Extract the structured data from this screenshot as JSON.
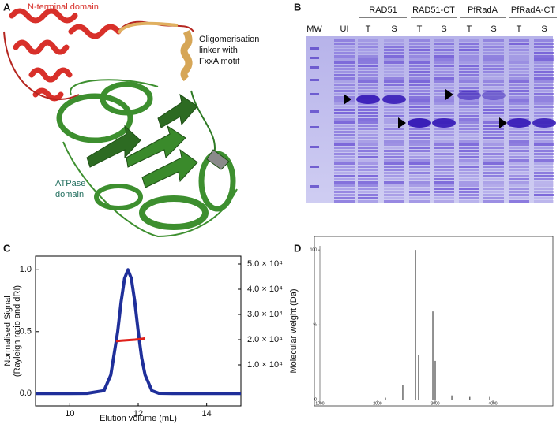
{
  "panels": {
    "a": {
      "letter": "A",
      "n_terminal_label": "N-terminal domain",
      "linker_label": [
        "Oligomerisation",
        "linker with",
        "FxxA motif"
      ],
      "atpase_label": [
        "ATPase",
        "domain"
      ]
    },
    "b": {
      "letter": "B",
      "groups": [
        "RAD51",
        "RAD51-CT",
        "PfRadA",
        "PfRadA-CT"
      ],
      "lanes": [
        "MW",
        "UI",
        "T",
        "S",
        "T",
        "S",
        "T",
        "S",
        "T",
        "S"
      ]
    },
    "c": {
      "letter": "C"
    },
    "d": {
      "letter": "D"
    }
  },
  "chart_data": [
    {
      "type": "line",
      "xlabel": "Elution volume (mL)",
      "ylabel": [
        "Normalised Signal",
        "(Rayleigh ratio and dRI)"
      ],
      "y2label": "Molecular weight (Da)",
      "xlim": [
        9,
        15
      ],
      "xticks": [
        10,
        12,
        14
      ],
      "ylim": [
        -0.1,
        1.11
      ],
      "yticks": [
        {
          "value": 0,
          "label": "0.0"
        },
        {
          "value": 0.5,
          "label": "0.5"
        },
        {
          "value": 1,
          "label": "1.0"
        }
      ],
      "y2lim": [
        -6250,
        53125
      ],
      "y2ticks": [
        {
          "value": 10000,
          "label": "1.0 × 10⁴"
        },
        {
          "value": 20000,
          "label": "2.0 × 10⁴"
        },
        {
          "value": 30000,
          "label": "3.0 × 10⁴"
        },
        {
          "value": 40000,
          "label": "4.0 × 10⁴"
        },
        {
          "value": 50000,
          "label": "5.0 × 10⁴"
        }
      ],
      "series": [
        {
          "color": "#1f2f9a",
          "x": [
            9,
            10,
            10.5,
            11,
            11.2,
            11.4,
            11.5,
            11.6,
            11.7,
            11.8,
            11.9,
            12.0,
            12.1,
            12.2,
            12.4,
            12.6,
            13,
            14,
            15
          ],
          "values": [
            0,
            0,
            0.001,
            0.023,
            0.15,
            0.5,
            0.74,
            0.93,
            1,
            0.93,
            0.74,
            0.5,
            0.29,
            0.15,
            0.023,
            0.002,
            0,
            0,
            0
          ]
        },
        {
          "color": "#e0201a",
          "axis": "y2",
          "x": [
            11.35,
            11.5,
            11.7,
            11.9,
            12.1,
            12.2
          ],
          "values": [
            19400,
            19600,
            19800,
            20000,
            20300,
            20500
          ]
        }
      ]
    },
    {
      "type": "spectrum",
      "xlim": [
        905,
        5040
      ],
      "xticks": [
        1000,
        2000,
        3000,
        4000
      ],
      "ylim": [
        -4,
        109
      ],
      "yticks": [
        0,
        {
          "value": 50,
          "label": "%"
        },
        100
      ],
      "color": "#222222",
      "x": [
        2137,
        2438,
        2658,
        2712,
        2959,
        3000,
        3288,
        3600,
        3945
      ],
      "values": [
        1.5,
        10,
        100,
        30,
        59,
        26,
        3,
        2,
        2
      ]
    }
  ]
}
